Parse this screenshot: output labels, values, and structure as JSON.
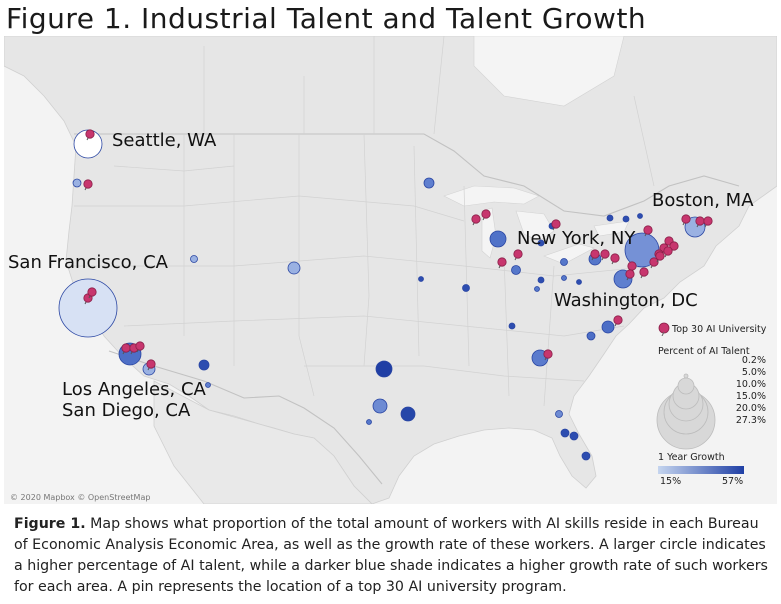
{
  "title": "Figure 1. Industrial Talent and Talent Growth",
  "map": {
    "attribution": "© 2020 Mapbox © OpenStreetMap",
    "city_labels": [
      "Seattle, WA",
      "Boston, MA",
      "New York, NY",
      "San Francisco, CA",
      "Washington, DC",
      "Los Angeles, CA",
      "San Diego, CA"
    ],
    "colors": {
      "land": "#e6e6e6",
      "water": "#f4f4f4",
      "border": "#c4c4c4",
      "growth_low": "#c5d5ef",
      "growth_high": "#1f3fa5",
      "pin": "#c7366e"
    }
  },
  "legend": {
    "pin_label": "Top 30 AI University",
    "size_title": "Percent of AI Talent",
    "size_values": [
      "0.2%",
      "5.0%",
      "10.0%",
      "15.0%",
      "20.0%",
      "27.3%"
    ],
    "growth_title": "1 Year Growth",
    "growth_min": "15%",
    "growth_max": "57%"
  },
  "caption": {
    "label": "Figure 1.",
    "text": " Map shows what proportion of the total amount of workers with AI skills reside in each Bureau of Economic Analysis Economic Area, as well as the growth rate of these workers. A larger circle indicates a higher percentage of AI talent, while a darker blue shade indicates a higher growth rate of such workers for each area. A pin represents the location of a top 30 AI university program."
  }
}
